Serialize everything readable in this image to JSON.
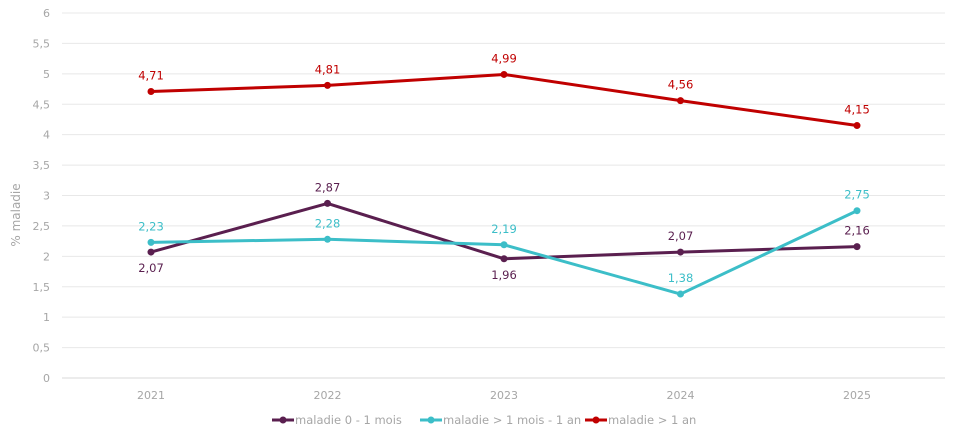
{
  "chart_data": {
    "type": "line",
    "title": "",
    "xlabel": "",
    "ylabel": "% maladie",
    "categories": [
      "2021",
      "2022",
      "2023",
      "2024",
      "2025"
    ],
    "ylim": [
      0,
      6
    ],
    "yticks": [
      "0",
      "0,5",
      "1",
      "1,5",
      "2",
      "2,5",
      "3",
      "3,5",
      "4",
      "4,5",
      "5",
      "5,5",
      "6"
    ],
    "grid": true,
    "legend_position": "bottom",
    "series": [
      {
        "name": "maladie 0 - 1 mois",
        "color": "#5a1f4f",
        "values": [
          2.07,
          2.87,
          1.96,
          2.07,
          2.16
        ],
        "labels": [
          "2,07",
          "2,87",
          "1,96",
          "2,07",
          "2,16"
        ]
      },
      {
        "name": "maladie > 1 mois - 1 an",
        "color": "#3cbec8",
        "values": [
          2.23,
          2.28,
          2.19,
          1.38,
          2.75
        ],
        "labels": [
          "2,23",
          "2,28",
          "2,19",
          "1,38",
          "2,75"
        ]
      },
      {
        "name": "maladie > 1 an",
        "color": "#c00000",
        "values": [
          4.71,
          4.81,
          4.99,
          4.56,
          4.15
        ],
        "labels": [
          "4,71",
          "4,81",
          "4,99",
          "4,56",
          "4,15"
        ]
      }
    ]
  }
}
